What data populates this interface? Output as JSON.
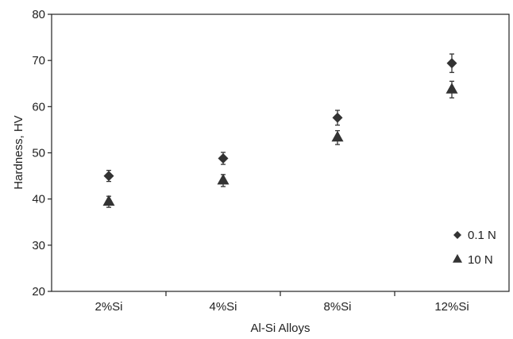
{
  "chart_data": {
    "type": "scatter",
    "title": "",
    "xlabel": "Al-Si Alloys",
    "ylabel": "Hardness, HV",
    "categories": [
      "2%Si",
      "4%Si",
      "8%Si",
      "12%Si"
    ],
    "ylim": [
      20,
      80
    ],
    "yticks": [
      "20",
      "30",
      "40",
      "50",
      "60",
      "70",
      "80"
    ],
    "grid": false,
    "legend_position": "bottom-right",
    "series": [
      {
        "name": "0.1 N",
        "marker": "diamond",
        "color": "#333333",
        "values": [
          45.0,
          48.8,
          57.6,
          69.4
        ],
        "errors": [
          1.2,
          1.3,
          1.6,
          2.0
        ]
      },
      {
        "name": "10 N",
        "marker": "triangle",
        "color": "#333333",
        "values": [
          39.4,
          44.0,
          53.3,
          63.7
        ],
        "errors": [
          1.2,
          1.3,
          1.5,
          1.8
        ]
      }
    ]
  }
}
